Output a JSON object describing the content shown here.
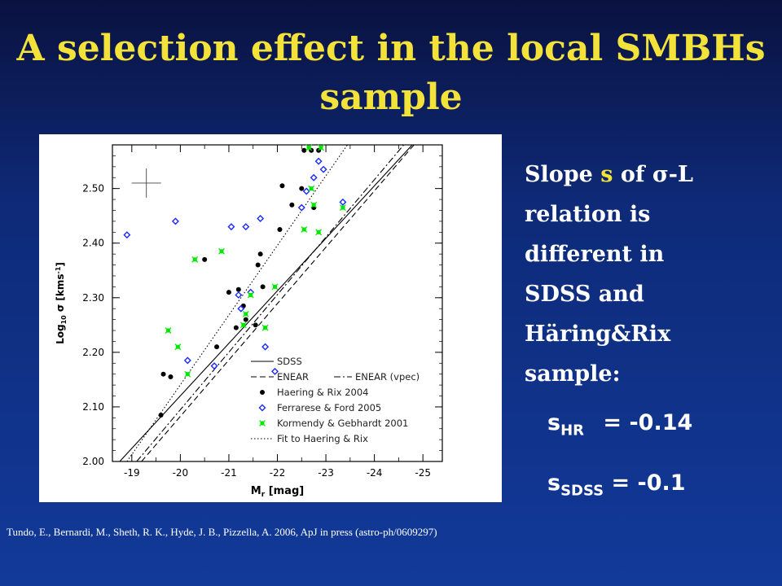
{
  "slide": {
    "title_line1": "A selection effect in the local SMBHs",
    "title_line2": "sample",
    "text_lines": [
      "Slope",
      "s",
      "of σ-L",
      "relation is",
      "different in",
      "SDSS and",
      "Häring&Rix",
      "sample:"
    ],
    "eq1": {
      "s": "s",
      "sub": "HR",
      "rest": "= -0.14"
    },
    "eq2": {
      "s": "s",
      "sub": "SDSS",
      "rest": "= -0.1"
    },
    "citation": "Tundo, E., Bernardi, M., Sheth, R. K., Hyde, J. B., Pizzella, A. 2006, ApJ in press  (astro-ph/0609297)"
  },
  "chart_data": {
    "type": "scatter",
    "xlabel": "M",
    "xlabel_sub": "r",
    "xlabel_unit": "[mag]",
    "ylabel_prefix": "Log",
    "ylabel_sub": "10",
    "ylabel_rest": "σ [kms",
    "ylabel_sup": "-1",
    "ylabel_end": "]",
    "xlim": [
      -18.6,
      -25.4
    ],
    "ylim": [
      2.0,
      2.58
    ],
    "xticks": [
      -19,
      -20,
      -21,
      -22,
      -23,
      -24,
      -25
    ],
    "yticks": [
      2.0,
      2.1,
      2.2,
      2.3,
      2.4,
      2.5
    ],
    "ytick_labels": [
      "2.00",
      "2.10",
      "2.20",
      "2.30",
      "2.40",
      "2.50"
    ],
    "xtick_labels": [
      "-19",
      "-20",
      "-21",
      "-22",
      "-23",
      "-24",
      "-25"
    ],
    "lines": [
      {
        "name": "SDSS",
        "style": "solid",
        "x": [
          -18.75,
          -25.3
        ],
        "y": [
          2.0,
          2.63
        ]
      },
      {
        "name": "ENEAR",
        "style": "dashed",
        "x": [
          -19.2,
          -25.3
        ],
        "y": [
          2.0,
          2.63
        ]
      },
      {
        "name": "ENEAR (vpec)",
        "style": "dashdot",
        "x": [
          -19.1,
          -24.7
        ],
        "y": [
          2.0,
          2.59
        ]
      },
      {
        "name": "Fit to Haering & Rix",
        "style": "dotted",
        "x": [
          -18.9,
          -23.6
        ],
        "y": [
          2.0,
          2.6
        ]
      }
    ],
    "series": [
      {
        "name": "Haering & Rix 2004",
        "marker": "filled-circle",
        "color": "#000000",
        "x": [
          -19.6,
          -19.65,
          -19.8,
          -20.5,
          -20.75,
          -21.0,
          -21.15,
          -21.2,
          -21.3,
          -21.35,
          -21.55,
          -21.6,
          -21.65,
          -21.7,
          -22.05,
          -22.1,
          -22.3,
          -22.5,
          -22.55,
          -22.7,
          -22.75,
          -22.85
        ],
        "y": [
          2.085,
          2.16,
          2.155,
          2.37,
          2.21,
          2.31,
          2.245,
          2.315,
          2.285,
          2.26,
          2.25,
          2.36,
          2.38,
          2.32,
          2.425,
          2.505,
          2.47,
          2.5,
          2.57,
          2.57,
          2.465,
          2.57
        ]
      },
      {
        "name": "Ferrarese & Ford 2005",
        "marker": "open-diamond",
        "color": "#1a2aff",
        "x": [
          -18.9,
          -19.9,
          -20.15,
          -20.7,
          -21.05,
          -21.2,
          -21.25,
          -21.35,
          -21.45,
          -21.65,
          -21.75,
          -21.95,
          -22.6,
          -22.75,
          -22.85,
          -22.95,
          -23.35,
          -22.5
        ],
        "y": [
          2.415,
          2.44,
          2.185,
          2.175,
          2.43,
          2.305,
          2.28,
          2.43,
          2.31,
          2.445,
          2.21,
          2.165,
          2.495,
          2.52,
          2.55,
          2.535,
          2.475,
          2.465
        ]
      },
      {
        "name": "Kormendy & Gebhardt 2001",
        "marker": "star",
        "color": "#00e800",
        "x": [
          -19.75,
          -19.95,
          -20.15,
          -20.3,
          -20.85,
          -21.3,
          -21.35,
          -21.45,
          -21.75,
          -21.95,
          -22.55,
          -22.65,
          -22.7,
          -22.75,
          -22.85,
          -22.9,
          -23.35
        ],
        "y": [
          2.24,
          2.21,
          2.16,
          2.37,
          2.385,
          2.25,
          2.27,
          2.305,
          2.245,
          2.32,
          2.425,
          2.575,
          2.5,
          2.47,
          2.42,
          2.575,
          2.465
        ]
      }
    ],
    "legend": {
      "placement": "bottom-right",
      "entries": [
        "SDSS",
        "ENEAR",
        "ENEAR (vpec)",
        "Haering & Rix 2004",
        "Ferrarese & Ford 2005",
        "Kormendy & Gebhardt 2001",
        "Fit to Haering & Rix"
      ]
    },
    "grid": false
  }
}
